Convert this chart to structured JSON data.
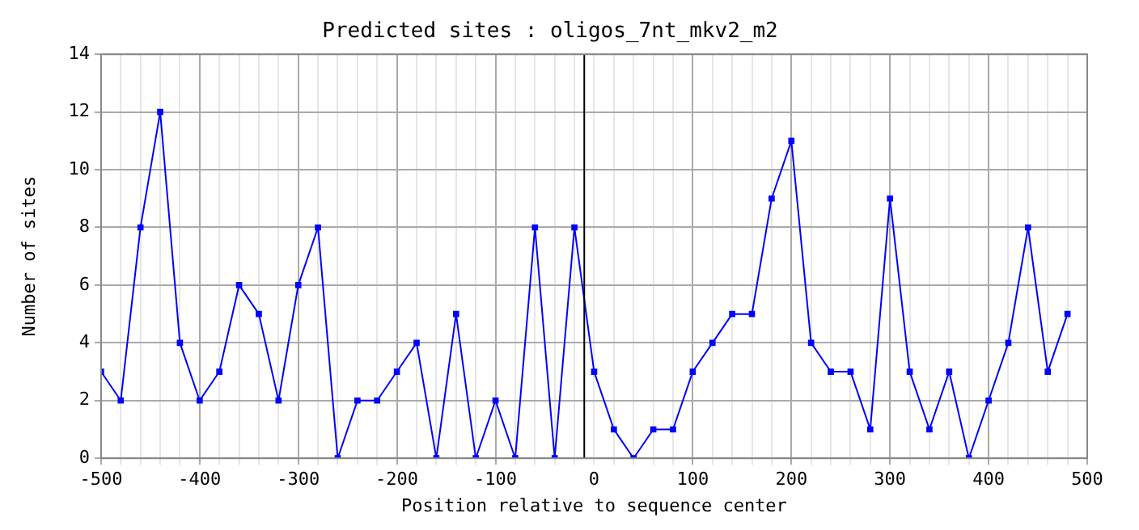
{
  "chart_data": {
    "type": "line",
    "title": "Predicted sites : oligos_7nt_mkv2_m2",
    "xlabel": "Position relative to sequence center",
    "ylabel": "Number of sites",
    "x": [
      -500,
      -480,
      -460,
      -440,
      -420,
      -400,
      -380,
      -360,
      -340,
      -320,
      -300,
      -280,
      -260,
      -240,
      -220,
      -200,
      -180,
      -160,
      -140,
      -120,
      -100,
      -80,
      -60,
      -40,
      -20,
      0,
      20,
      40,
      60,
      80,
      100,
      120,
      140,
      160,
      180,
      200,
      220,
      240,
      260,
      280,
      300,
      320,
      340,
      360,
      380,
      400,
      420,
      440,
      460,
      480
    ],
    "series": [
      {
        "color": "#0000ff",
        "values": [
          3,
          2,
          8,
          12,
          4,
          2,
          3,
          6,
          5,
          2,
          6,
          8,
          0,
          2,
          2,
          3,
          4,
          0,
          5,
          0,
          2,
          0,
          8,
          0,
          8,
          3,
          1,
          0,
          1,
          1,
          3,
          4,
          5,
          5,
          9,
          11,
          4,
          3,
          3,
          1,
          9,
          3,
          1,
          3,
          0,
          2,
          4,
          8,
          3,
          5
        ]
      }
    ],
    "xlim": [
      -500,
      500
    ],
    "xticks": [
      -500,
      {
        "value": -480,
        "label": null
      },
      {
        "value": -460,
        "label": null
      },
      {
        "value": -440,
        "label": null
      },
      {
        "value": -420,
        "label": null
      },
      -400,
      {
        "value": -380,
        "label": null
      },
      {
        "value": -360,
        "label": null
      },
      {
        "value": -340,
        "label": null
      },
      {
        "value": -320,
        "label": null
      },
      -300,
      {
        "value": -280,
        "label": null
      },
      {
        "value": -260,
        "label": null
      },
      {
        "value": -240,
        "label": null
      },
      {
        "value": -220,
        "label": null
      },
      -200,
      {
        "value": -180,
        "label": null
      },
      {
        "value": -160,
        "label": null
      },
      {
        "value": -140,
        "label": null
      },
      {
        "value": -120,
        "label": null
      },
      -100,
      {
        "value": -80,
        "label": null
      },
      {
        "value": -60,
        "label": null
      },
      {
        "value": -40,
        "label": null
      },
      {
        "value": -20,
        "label": null
      },
      0,
      {
        "value": 20,
        "label": null
      },
      {
        "value": 40,
        "label": null
      },
      {
        "value": 60,
        "label": null
      },
      {
        "value": 80,
        "label": null
      },
      100,
      {
        "value": 120,
        "label": null
      },
      {
        "value": 140,
        "label": null
      },
      {
        "value": 160,
        "label": null
      },
      {
        "value": 180,
        "label": null
      },
      200,
      {
        "value": 220,
        "label": null
      },
      {
        "value": 240,
        "label": null
      },
      {
        "value": 260,
        "label": null
      },
      {
        "value": 280,
        "label": null
      },
      300,
      {
        "value": 320,
        "label": null
      },
      {
        "value": 340,
        "label": null
      },
      {
        "value": 360,
        "label": null
      },
      {
        "value": 380,
        "label": null
      },
      400,
      {
        "value": 420,
        "label": null
      },
      {
        "value": 440,
        "label": null
      },
      {
        "value": 460,
        "label": null
      },
      {
        "value": 480,
        "label": null
      },
      500
    ],
    "ylim": [
      0,
      14
    ],
    "yticks": [
      0,
      2,
      4,
      6,
      8,
      10,
      12,
      14
    ],
    "ref_lines": [
      {
        "axis": "x",
        "value": -10,
        "color": "#000000"
      }
    ],
    "grid": true,
    "legend": false,
    "marker": "square",
    "line_style": "solid"
  }
}
